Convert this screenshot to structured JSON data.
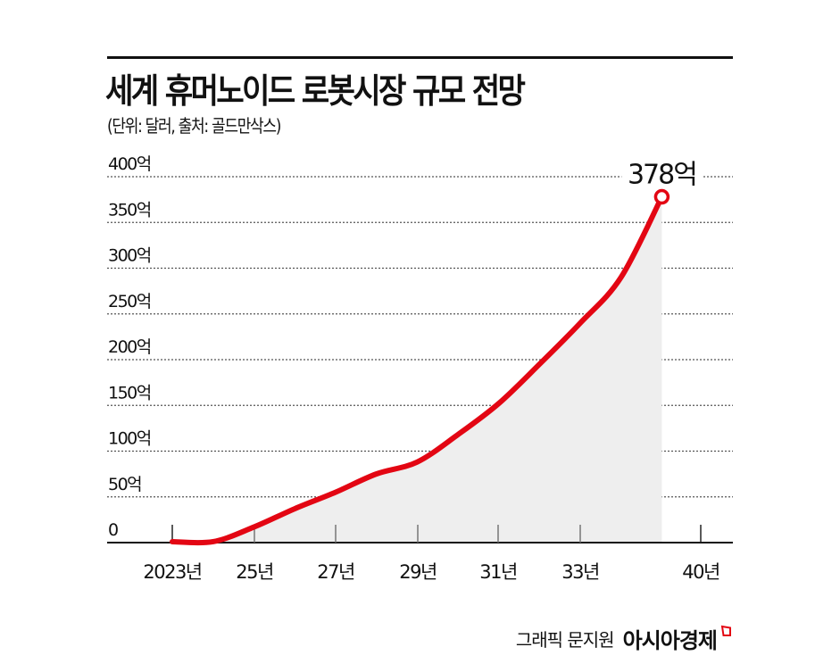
{
  "header": {
    "title": "세계 휴머노이드 로봇시장 규모 전망",
    "subtitle": "(단위: 달러, 출처: 골드만삭스)"
  },
  "colors": {
    "line": "#e30613",
    "fill": "#eeeeee",
    "text": "#111111",
    "grid": "#555555"
  },
  "chart_data": {
    "type": "area",
    "title": "세계 휴머노이드 로봇시장 규모 전망",
    "subtitle": "(단위: 달러, 출처: 골드만삭스)",
    "xlabel": "",
    "ylabel": "",
    "unit": "억 달러",
    "ylim": [
      0,
      400
    ],
    "yticks": [
      "0",
      "50억",
      "100억",
      "150억",
      "200억",
      "250억",
      "300억",
      "350억",
      "400억"
    ],
    "xticks": [
      "2023년",
      "25년",
      "27년",
      "29년",
      "31년",
      "33년",
      "40년"
    ],
    "grid": "horizontal dotted",
    "legend": "none",
    "series": [
      {
        "name": "시장 규모",
        "x": [
          2023,
          2024,
          2025,
          2026,
          2027,
          2028,
          2029,
          2030,
          2031,
          2032,
          2033,
          2034,
          2035
        ],
        "values": [
          1,
          1,
          17,
          37,
          55,
          75,
          88,
          118,
          152,
          195,
          240,
          290,
          378
        ]
      }
    ],
    "annotations": [
      {
        "x": 2035,
        "value": 378,
        "label": "378억"
      }
    ]
  },
  "footer": {
    "credit": "그래픽 문지원",
    "brand": "아시아경제"
  }
}
